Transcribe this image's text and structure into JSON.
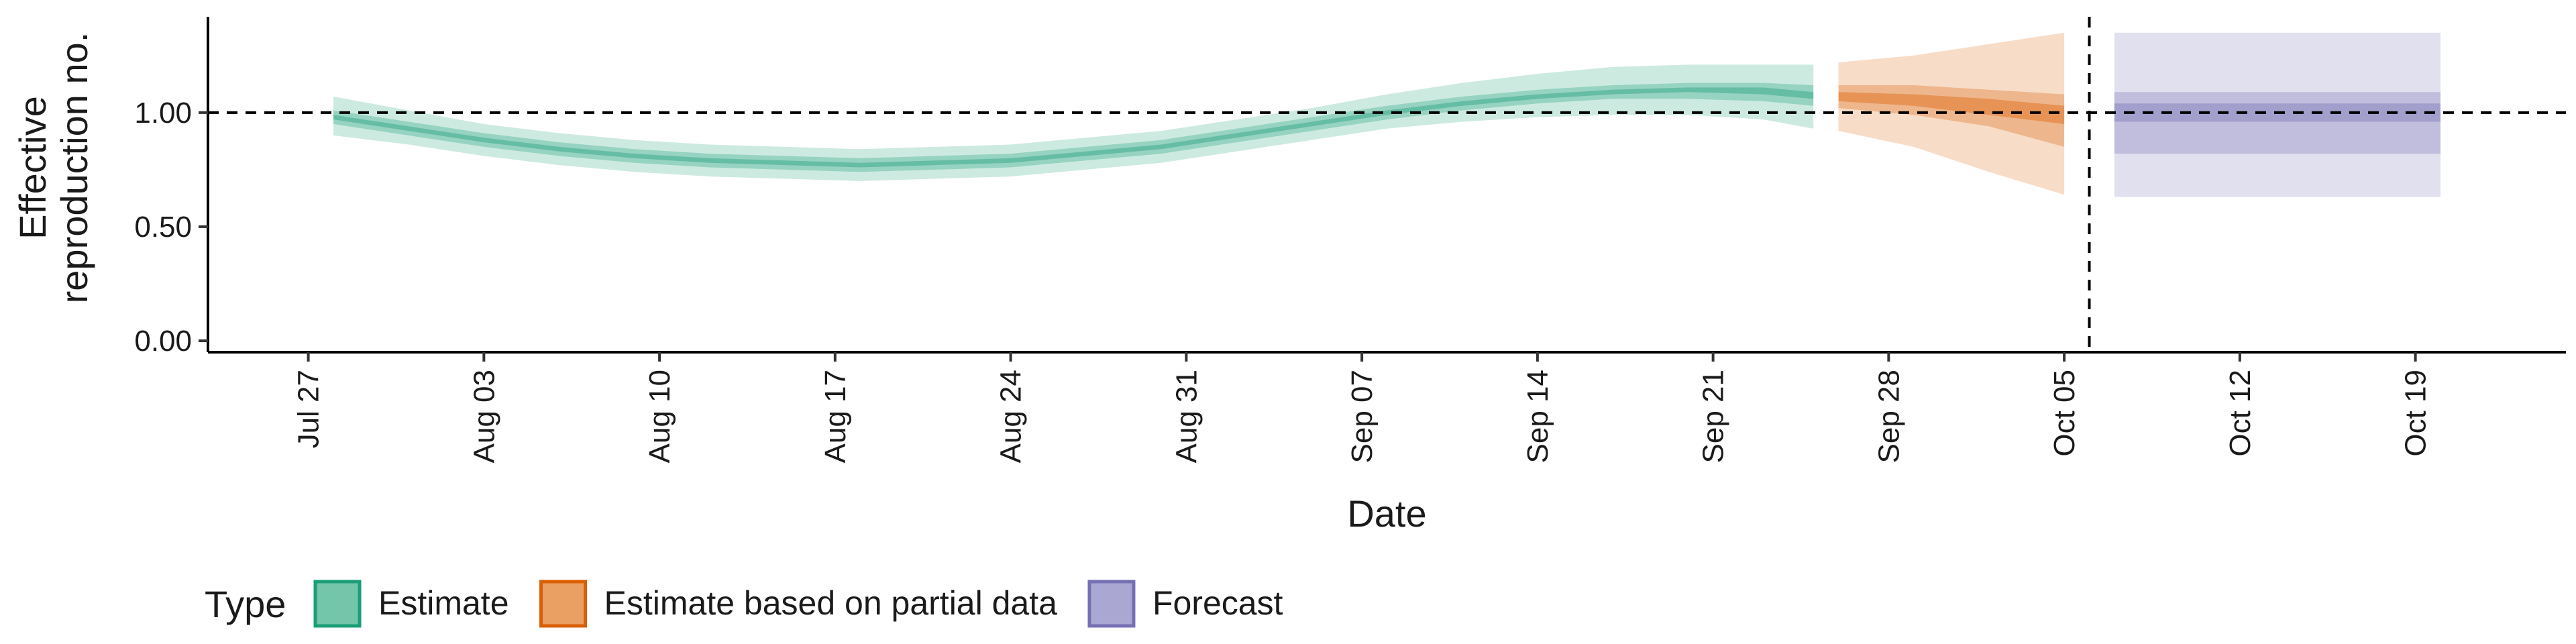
{
  "chart_data": {
    "type": "area",
    "title": "",
    "xlabel": "Date",
    "ylabel_lines": [
      "Effective",
      "reproduction no."
    ],
    "x_range": [
      "2020-07-23",
      "2020-10-25"
    ],
    "ylim": [
      -0.05,
      1.42
    ],
    "x_ticks": [
      {
        "date": "2020-07-27",
        "label": "Jul 27"
      },
      {
        "date": "2020-08-03",
        "label": "Aug 03"
      },
      {
        "date": "2020-08-10",
        "label": "Aug 10"
      },
      {
        "date": "2020-08-17",
        "label": "Aug 17"
      },
      {
        "date": "2020-08-24",
        "label": "Aug 24"
      },
      {
        "date": "2020-08-31",
        "label": "Aug 31"
      },
      {
        "date": "2020-09-07",
        "label": "Sep 07"
      },
      {
        "date": "2020-09-14",
        "label": "Sep 14"
      },
      {
        "date": "2020-09-21",
        "label": "Sep 21"
      },
      {
        "date": "2020-09-28",
        "label": "Sep 28"
      },
      {
        "date": "2020-10-05",
        "label": "Oct 05"
      },
      {
        "date": "2020-10-12",
        "label": "Oct 12"
      },
      {
        "date": "2020-10-19",
        "label": "Oct 19"
      }
    ],
    "y_ticks": [
      {
        "value": 0.0,
        "label": "0.00"
      },
      {
        "value": 0.5,
        "label": "0.50"
      },
      {
        "value": 1.0,
        "label": "1.00"
      }
    ],
    "reference_hline": 1.0,
    "reference_vline": "2020-10-06",
    "grid": false,
    "legend": {
      "title": "Type",
      "position": "bottom",
      "entries": [
        {
          "label": "Estimate",
          "fill": "#74c6aa",
          "stroke": "#1b9e77"
        },
        {
          "label": "Estimate based on partial data",
          "fill": "#eba063",
          "stroke": "#d95f02"
        },
        {
          "label": "Forecast",
          "fill": "#aaa8d3",
          "stroke": "#7570b3"
        }
      ]
    },
    "series": [
      {
        "type": "Estimate",
        "color": "#1b9e77",
        "points": [
          {
            "date": "2020-07-28",
            "median": 0.98,
            "lo90": 0.9,
            "hi90": 1.07,
            "lo50": 0.95,
            "hi50": 1.01,
            "lo20": 0.97,
            "hi20": 0.99
          },
          {
            "date": "2020-07-31",
            "median": 0.93,
            "lo90": 0.86,
            "hi90": 1.01,
            "lo50": 0.9,
            "hi50": 0.96,
            "lo20": 0.92,
            "hi20": 0.94
          },
          {
            "date": "2020-08-03",
            "median": 0.88,
            "lo90": 0.81,
            "hi90": 0.95,
            "lo50": 0.85,
            "hi50": 0.91,
            "lo20": 0.87,
            "hi20": 0.89
          },
          {
            "date": "2020-08-06",
            "median": 0.84,
            "lo90": 0.77,
            "hi90": 0.91,
            "lo50": 0.81,
            "hi50": 0.87,
            "lo20": 0.83,
            "hi20": 0.85
          },
          {
            "date": "2020-08-09",
            "median": 0.81,
            "lo90": 0.74,
            "hi90": 0.88,
            "lo50": 0.78,
            "hi50": 0.84,
            "lo20": 0.8,
            "hi20": 0.82
          },
          {
            "date": "2020-08-12",
            "median": 0.79,
            "lo90": 0.72,
            "hi90": 0.86,
            "lo50": 0.76,
            "hi50": 0.82,
            "lo20": 0.78,
            "hi20": 0.8
          },
          {
            "date": "2020-08-15",
            "median": 0.78,
            "lo90": 0.71,
            "hi90": 0.85,
            "lo50": 0.75,
            "hi50": 0.81,
            "lo20": 0.77,
            "hi20": 0.79
          },
          {
            "date": "2020-08-18",
            "median": 0.77,
            "lo90": 0.7,
            "hi90": 0.84,
            "lo50": 0.74,
            "hi50": 0.8,
            "lo20": 0.76,
            "hi20": 0.78
          },
          {
            "date": "2020-08-21",
            "median": 0.78,
            "lo90": 0.71,
            "hi90": 0.85,
            "lo50": 0.75,
            "hi50": 0.81,
            "lo20": 0.77,
            "hi20": 0.79
          },
          {
            "date": "2020-08-24",
            "median": 0.79,
            "lo90": 0.72,
            "hi90": 0.86,
            "lo50": 0.76,
            "hi50": 0.82,
            "lo20": 0.78,
            "hi20": 0.8
          },
          {
            "date": "2020-08-27",
            "median": 0.82,
            "lo90": 0.75,
            "hi90": 0.89,
            "lo50": 0.79,
            "hi50": 0.85,
            "lo20": 0.81,
            "hi20": 0.83
          },
          {
            "date": "2020-08-30",
            "median": 0.85,
            "lo90": 0.78,
            "hi90": 0.92,
            "lo50": 0.82,
            "hi50": 0.88,
            "lo20": 0.84,
            "hi20": 0.86
          },
          {
            "date": "2020-09-02",
            "median": 0.9,
            "lo90": 0.83,
            "hi90": 0.97,
            "lo50": 0.87,
            "hi50": 0.93,
            "lo20": 0.89,
            "hi20": 0.91
          },
          {
            "date": "2020-09-05",
            "median": 0.95,
            "lo90": 0.88,
            "hi90": 1.02,
            "lo50": 0.92,
            "hi50": 0.98,
            "lo20": 0.94,
            "hi20": 0.96
          },
          {
            "date": "2020-09-08",
            "median": 1.0,
            "lo90": 0.93,
            "hi90": 1.08,
            "lo50": 0.97,
            "hi50": 1.03,
            "lo20": 0.99,
            "hi20": 1.01
          },
          {
            "date": "2020-09-11",
            "median": 1.04,
            "lo90": 0.96,
            "hi90": 1.13,
            "lo50": 1.01,
            "hi50": 1.07,
            "lo20": 1.03,
            "hi20": 1.05
          },
          {
            "date": "2020-09-14",
            "median": 1.07,
            "lo90": 0.98,
            "hi90": 1.17,
            "lo50": 1.04,
            "hi50": 1.1,
            "lo20": 1.06,
            "hi20": 1.08
          },
          {
            "date": "2020-09-17",
            "median": 1.09,
            "lo90": 0.99,
            "hi90": 1.2,
            "lo50": 1.06,
            "hi50": 1.12,
            "lo20": 1.08,
            "hi20": 1.1
          },
          {
            "date": "2020-09-20",
            "median": 1.1,
            "lo90": 0.99,
            "hi90": 1.21,
            "lo50": 1.06,
            "hi50": 1.13,
            "lo20": 1.09,
            "hi20": 1.11
          },
          {
            "date": "2020-09-23",
            "median": 1.09,
            "lo90": 0.97,
            "hi90": 1.21,
            "lo50": 1.05,
            "hi50": 1.13,
            "lo20": 1.08,
            "hi20": 1.11
          },
          {
            "date": "2020-09-25",
            "median": 1.07,
            "lo90": 0.93,
            "hi90": 1.21,
            "lo50": 1.03,
            "hi50": 1.12,
            "lo20": 1.06,
            "hi20": 1.09
          }
        ]
      },
      {
        "type": "Estimate based on partial data",
        "color": "#d95f02",
        "points": [
          {
            "date": "2020-09-26",
            "median": 1.07,
            "lo90": 0.92,
            "hi90": 1.22,
            "lo50": 1.02,
            "hi50": 1.12,
            "lo20": 1.05,
            "hi20": 1.09
          },
          {
            "date": "2020-09-29",
            "median": 1.05,
            "lo90": 0.85,
            "hi90": 1.25,
            "lo50": 0.99,
            "hi50": 1.12,
            "lo20": 1.03,
            "hi20": 1.08
          },
          {
            "date": "2020-10-02",
            "median": 1.02,
            "lo90": 0.74,
            "hi90": 1.3,
            "lo50": 0.94,
            "hi50": 1.1,
            "lo20": 0.99,
            "hi20": 1.06
          },
          {
            "date": "2020-10-05",
            "median": 0.99,
            "lo90": 0.64,
            "hi90": 1.35,
            "lo50": 0.85,
            "hi50": 1.08,
            "lo20": 0.95,
            "hi20": 1.03
          }
        ]
      },
      {
        "type": "Forecast",
        "color": "#7570b3",
        "points": [
          {
            "date": "2020-10-07",
            "median": 1.0,
            "lo90": 0.63,
            "hi90": 1.35,
            "lo50": 0.82,
            "hi50": 1.09,
            "lo20": 0.96,
            "hi20": 1.04
          },
          {
            "date": "2020-10-20",
            "median": 1.0,
            "lo90": 0.63,
            "hi90": 1.35,
            "lo50": 0.82,
            "hi50": 1.09,
            "lo20": 0.96,
            "hi20": 1.04
          }
        ]
      }
    ]
  }
}
